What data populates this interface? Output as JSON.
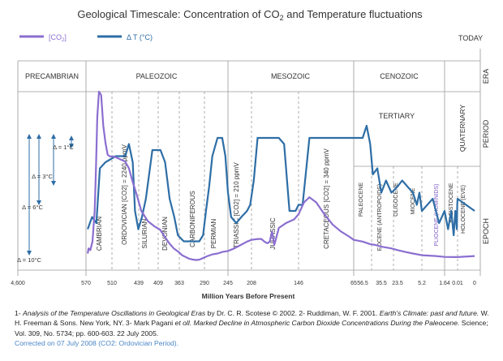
{
  "colors": {
    "co2": "#8b6ed0",
    "temp": "#2e6ea6",
    "grid": "#9a9a9a",
    "period_text": "#444444",
    "pliocene_text": "#7d5cc4"
  },
  "chart_data": {
    "type": "line",
    "title": "Geological Timescale: Concentration of CO",
    "title_sub": "2",
    "title_tail": " and Temperature fluctuations",
    "xlabel": "Million Years Before Present",
    "legend": {
      "co2": "[CO",
      "co2_sub": "2",
      "co2_tail": "]",
      "temp": "Δ T (°C)"
    },
    "side_labels": {
      "today": "TODAY",
      "era": "ERA",
      "period": "PERIOD",
      "epoch": "EPOCH"
    },
    "x_ticks": [
      "4,600",
      "570",
      "510",
      "439",
      "409",
      "363",
      "290",
      "245",
      "208",
      "146",
      "65",
      "56.5",
      "35.5",
      "23.5",
      "5.2",
      "1.64",
      "0.01",
      "0"
    ],
    "eras": [
      "PRECAMBRIAN",
      "PALEOZOIC",
      "MESOZOIC",
      "CENOZOIC"
    ],
    "periods": {
      "tertiary": "TERTIARY",
      "quaternary": "QUATERNARY"
    },
    "epochs": [
      {
        "id": "cambrian",
        "text": "CAMBRIAN"
      },
      {
        "id": "ordovician",
        "text": "ORDOVICIAN [CO2] = 2240 ppmV"
      },
      {
        "id": "silurian",
        "text": "SILURIAN"
      },
      {
        "id": "devonian",
        "text": "DEVONIAN"
      },
      {
        "id": "carboniferous",
        "text": "CARBONIFEROUS"
      },
      {
        "id": "permian",
        "text": "PERMIAN"
      },
      {
        "id": "triassic",
        "text": "TRIASSIC [CO2] = 210 ppmV"
      },
      {
        "id": "jurassic",
        "text": "JURASSIC"
      },
      {
        "id": "cretaceous",
        "text": "CRETACEOUS [CO2] = 340 ppmV"
      },
      {
        "id": "paleocene",
        "text": "PALEOCENE"
      },
      {
        "id": "eocene",
        "text": "EOCENE (ANTROPOIDS)"
      },
      {
        "id": "oligocene",
        "text": "OLIGOCENE"
      },
      {
        "id": "miocene",
        "text": "MIOCENE"
      },
      {
        "id": "pliocene",
        "text": "PLIOCENE (HOMINIDS)"
      },
      {
        "id": "pleistocene",
        "text": "PLEISTOCENE"
      },
      {
        "id": "holocene",
        "text": "HOLOCENE (EVE)"
      }
    ],
    "temp_scale": [
      "Δ = 1°C",
      "Δ = 3°C",
      "Δ = 6°C",
      "Δ = 10°C"
    ],
    "series": [
      {
        "id": "co2",
        "name": "[CO2]",
        "values": [
          [
            566,
            5
          ],
          [
            564,
            8
          ],
          [
            560,
            7
          ],
          [
            555,
            12
          ],
          [
            550,
            30
          ],
          [
            547,
            55
          ],
          [
            544,
            85
          ],
          [
            540,
            100
          ],
          [
            535,
            98
          ],
          [
            530,
            80
          ],
          [
            525,
            70
          ],
          [
            520,
            63
          ],
          [
            515,
            62
          ],
          [
            505,
            62
          ],
          [
            495,
            61
          ],
          [
            485,
            60
          ],
          [
            475,
            59
          ],
          [
            465,
            55
          ],
          [
            455,
            47
          ],
          [
            445,
            40
          ],
          [
            435,
            30
          ],
          [
            425,
            24
          ],
          [
            415,
            21
          ],
          [
            405,
            19
          ],
          [
            395,
            15
          ],
          [
            385,
            11
          ],
          [
            375,
            8
          ],
          [
            365,
            6
          ],
          [
            355,
            4
          ],
          [
            345,
            3
          ],
          [
            335,
            2
          ],
          [
            325,
            1.5
          ],
          [
            315,
            1.2
          ],
          [
            305,
            1.4
          ],
          [
            295,
            2.3
          ],
          [
            285,
            3.4
          ],
          [
            275,
            4.5
          ],
          [
            265,
            5
          ],
          [
            255,
            6
          ],
          [
            245,
            6.5
          ],
          [
            235,
            8
          ],
          [
            225,
            10
          ],
          [
            215,
            12
          ],
          [
            208,
            13
          ],
          [
            200,
            13.5
          ],
          [
            195,
            13.5
          ],
          [
            191,
            12
          ],
          [
            187,
            11
          ],
          [
            184,
            12
          ],
          [
            181,
            18
          ],
          [
            178,
            10
          ],
          [
            172,
            20
          ],
          [
            162,
            23
          ],
          [
            152,
            25
          ],
          [
            146,
            28
          ],
          [
            138,
            35
          ],
          [
            130,
            38
          ],
          [
            120,
            35
          ],
          [
            108,
            28
          ],
          [
            96,
            22
          ],
          [
            84,
            18
          ],
          [
            72,
            15
          ],
          [
            65,
            13
          ],
          [
            56.5,
            12
          ],
          [
            48,
            10.5
          ],
          [
            42,
            10
          ],
          [
            35.5,
            9
          ],
          [
            28,
            8
          ],
          [
            23.5,
            7
          ],
          [
            18,
            6
          ],
          [
            12,
            5
          ],
          [
            5.2,
            4
          ],
          [
            3,
            3.5
          ],
          [
            1.64,
            3
          ],
          [
            0.5,
            2.9
          ],
          [
            0.01,
            2.9
          ],
          [
            0,
            3.5
          ]
        ]
      },
      {
        "id": "temp",
        "name": "Δ T (°C)",
        "values": [
          [
            566,
            -9
          ],
          [
            556,
            -7
          ],
          [
            546,
            -8
          ],
          [
            538,
            1
          ],
          [
            525,
            2
          ],
          [
            500,
            3
          ],
          [
            490,
            3
          ],
          [
            475,
            3
          ],
          [
            465,
            5
          ],
          [
            455,
            2
          ],
          [
            449,
            -6
          ],
          [
            440,
            -9
          ],
          [
            434,
            -7
          ],
          [
            428,
            -4
          ],
          [
            418,
            4
          ],
          [
            412,
            4
          ],
          [
            404,
            4
          ],
          [
            394,
            2
          ],
          [
            384,
            -4
          ],
          [
            374,
            -7
          ],
          [
            366,
            -10
          ],
          [
            350,
            -11
          ],
          [
            330,
            -11
          ],
          [
            305,
            -11
          ],
          [
            294,
            -10
          ],
          [
            287,
            -6
          ],
          [
            281,
            -2
          ],
          [
            275,
            3
          ],
          [
            265,
            6
          ],
          [
            256,
            6
          ],
          [
            250,
            3
          ],
          [
            245,
            -3
          ],
          [
            240,
            -7
          ],
          [
            232,
            -8
          ],
          [
            224,
            -7
          ],
          [
            215,
            -6
          ],
          [
            210,
            -5
          ],
          [
            205,
            -1
          ],
          [
            200,
            6
          ],
          [
            190,
            6
          ],
          [
            180,
            6
          ],
          [
            172,
            6
          ],
          [
            165,
            5
          ],
          [
            158,
            -6
          ],
          [
            150,
            -6
          ],
          [
            146,
            -5
          ],
          [
            140,
            -5
          ],
          [
            130,
            6
          ],
          [
            120,
            6
          ],
          [
            105,
            6
          ],
          [
            95,
            6
          ],
          [
            85,
            6
          ],
          [
            75,
            6
          ],
          [
            65,
            6
          ],
          [
            56.5,
            6
          ],
          [
            52,
            8
          ],
          [
            48,
            5
          ],
          [
            45,
            0
          ],
          [
            40,
            1
          ],
          [
            35.5,
            -3
          ],
          [
            32,
            -1
          ],
          [
            28,
            -3
          ],
          [
            23.5,
            -2
          ],
          [
            20,
            -1
          ],
          [
            16,
            -2
          ],
          [
            12,
            -3
          ],
          [
            9,
            -5
          ],
          [
            7,
            -3
          ],
          [
            5.2,
            -6
          ],
          [
            3.5,
            -4
          ],
          [
            2.5,
            -8
          ],
          [
            1.64,
            -6
          ],
          [
            1.2,
            -9
          ],
          [
            0.8,
            -6
          ],
          [
            0.5,
            -10
          ],
          [
            0.3,
            -6
          ],
          [
            0.1,
            -9
          ],
          [
            0.05,
            -5
          ],
          [
            0.01,
            -4
          ],
          [
            0,
            -6
          ]
        ]
      }
    ]
  },
  "footer": {
    "prefix": "1- ",
    "ref1": "Analysis of the Temperature Oscillations in Geological Eras",
    "ref1_tail": " by Dr. C. R. Scotese © 2002. 2- Ruddiman, W. F. 2001. ",
    "ref2": "Earth's Climate: past and future.",
    "ref2_tail": " W. H. Freeman & Sons. New York, NY. 3- Mark Pagani ",
    "ref3_etal": "et oll.",
    "ref3": " Marked Decline in Atmospheric Carbon Dioxide Concentrations During the Paleocene.",
    "ref3_tail": " Science; Vol. 309, No. 5734; pp. 600-603. 22 July 2005.",
    "correction": "Corrected on 07 July 2008 (CO2: Ordovician Period)."
  }
}
